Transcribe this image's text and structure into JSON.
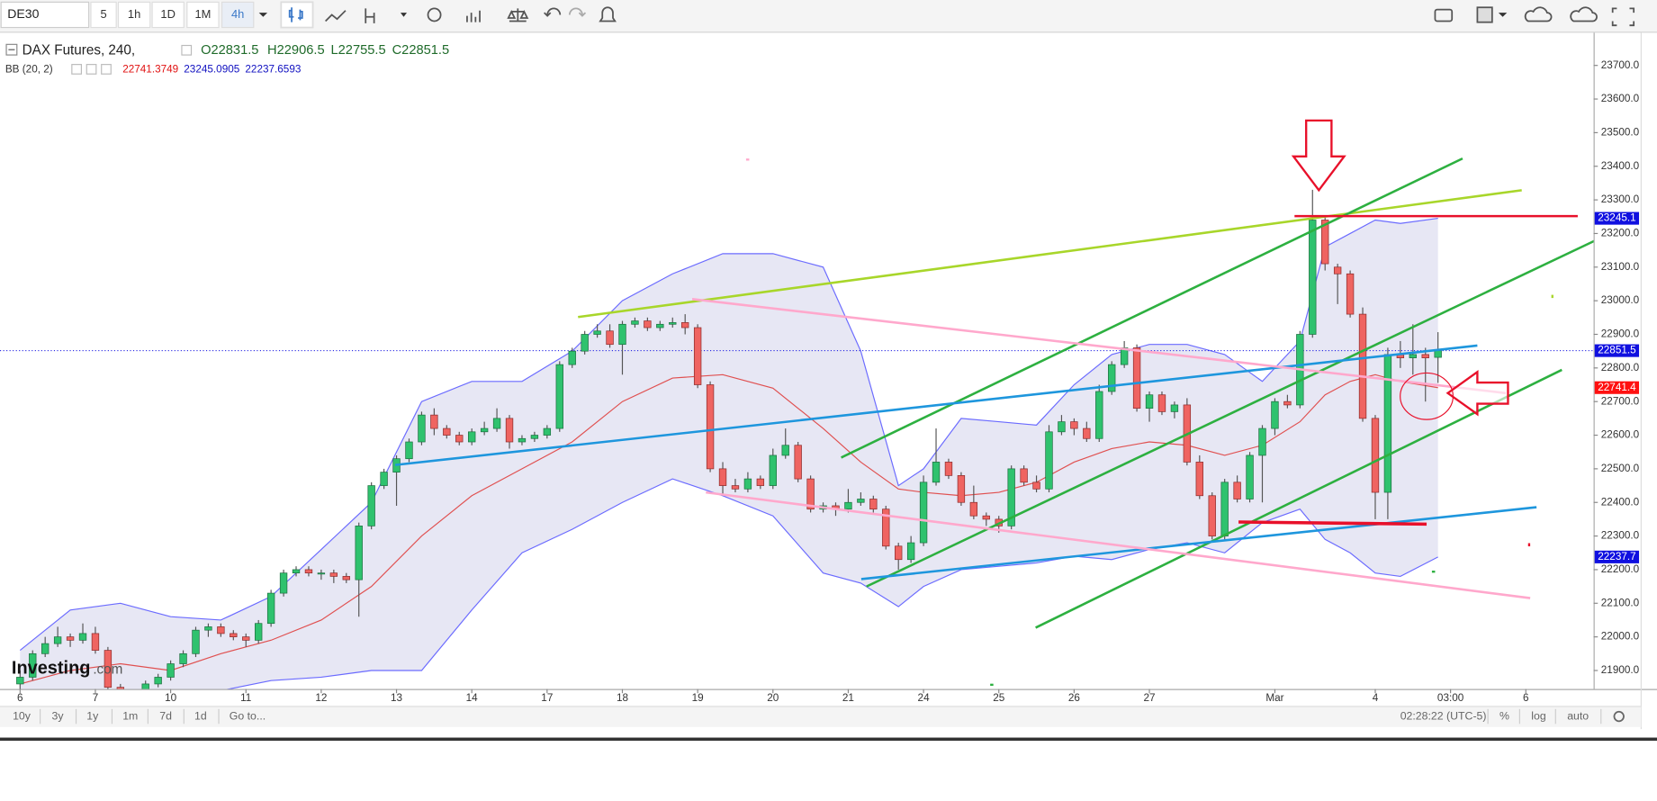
{
  "toolbar": {
    "symbol": "DE30",
    "intervals": [
      "5",
      "1h",
      "1D",
      "1M",
      "4h"
    ]
  },
  "legend": {
    "name": "DAX Futures, 240,",
    "ohlc": [
      "O22831.5",
      "H22906.5",
      "L22755.5",
      "C22851.5"
    ],
    "bb_name": "BB (20, 2)",
    "bb": [
      "22741.3749",
      "23245.0905",
      "22237.6593"
    ]
  },
  "watermark": [
    "Investing",
    ".com"
  ],
  "range_bar": {
    "ranges": [
      "10y",
      "3y",
      "1y",
      "1m",
      "7d",
      "1d"
    ],
    "goto": "Go to...",
    "clock": "02:28:22 (UTC-5)",
    "options": [
      "%",
      "log",
      "auto"
    ]
  },
  "chart_data": {
    "type": "candlestick",
    "up_color": "#2fc26e",
    "down_color": "#ef6461",
    "ohlc": [
      [
        21860,
        21900,
        21840,
        21880
      ],
      [
        21880,
        21960,
        21870,
        21950
      ],
      [
        21950,
        22000,
        21940,
        21980
      ],
      [
        21980,
        22030,
        21970,
        22000
      ],
      [
        22000,
        22010,
        21970,
        21990
      ],
      [
        21990,
        22040,
        21980,
        22010
      ],
      [
        22010,
        22030,
        21950,
        21960
      ],
      [
        21960,
        21970,
        21840,
        21850
      ],
      [
        21850,
        21860,
        21800,
        21820
      ],
      [
        21820,
        21830,
        21780,
        21800
      ],
      [
        21800,
        21870,
        21790,
        21860
      ],
      [
        21860,
        21890,
        21850,
        21880
      ],
      [
        21880,
        21930,
        21870,
        21920
      ],
      [
        21920,
        21960,
        21910,
        21950
      ],
      [
        21950,
        22030,
        21940,
        22020
      ],
      [
        22020,
        22040,
        22000,
        22030
      ],
      [
        22030,
        22040,
        22000,
        22010
      ],
      [
        22010,
        22020,
        21990,
        22000
      ],
      [
        22000,
        22010,
        21970,
        21990
      ],
      [
        21990,
        22050,
        21980,
        22040
      ],
      [
        22040,
        22140,
        22030,
        22130
      ],
      [
        22130,
        22200,
        22120,
        22190
      ],
      [
        22190,
        22210,
        22180,
        22200
      ],
      [
        22200,
        22210,
        22180,
        22190
      ],
      [
        22190,
        22200,
        22170,
        22190
      ],
      [
        22190,
        22200,
        22160,
        22180
      ],
      [
        22180,
        22190,
        22160,
        22170
      ],
      [
        22170,
        22340,
        22060,
        22330
      ],
      [
        22330,
        22460,
        22320,
        22450
      ],
      [
        22450,
        22500,
        22440,
        22490
      ],
      [
        22490,
        22540,
        22390,
        22530
      ],
      [
        22530,
        22590,
        22520,
        22580
      ],
      [
        22580,
        22670,
        22570,
        22660
      ],
      [
        22660,
        22680,
        22600,
        22620
      ],
      [
        22620,
        22630,
        22590,
        22600
      ],
      [
        22600,
        22610,
        22570,
        22580
      ],
      [
        22580,
        22620,
        22570,
        22610
      ],
      [
        22610,
        22640,
        22600,
        22620
      ],
      [
        22620,
        22680,
        22610,
        22650
      ],
      [
        22650,
        22660,
        22560,
        22580
      ],
      [
        22580,
        22600,
        22570,
        22590
      ],
      [
        22590,
        22610,
        22580,
        22600
      ],
      [
        22600,
        22630,
        22590,
        22620
      ],
      [
        22620,
        22820,
        22610,
        22810
      ],
      [
        22810,
        22860,
        22800,
        22850
      ],
      [
        22850,
        22910,
        22840,
        22900
      ],
      [
        22900,
        22930,
        22890,
        22910
      ],
      [
        22910,
        22930,
        22860,
        22870
      ],
      [
        22870,
        22940,
        22780,
        22930
      ],
      [
        22930,
        22950,
        22920,
        22940
      ],
      [
        22940,
        22950,
        22910,
        22920
      ],
      [
        22920,
        22940,
        22910,
        22930
      ],
      [
        22930,
        22950,
        22920,
        22935
      ],
      [
        22935,
        22960,
        22900,
        22920
      ],
      [
        22920,
        22930,
        22740,
        22750
      ],
      [
        22750,
        22760,
        22490,
        22500
      ],
      [
        22500,
        22520,
        22420,
        22450
      ],
      [
        22450,
        22470,
        22430,
        22440
      ],
      [
        22440,
        22490,
        22430,
        22470
      ],
      [
        22470,
        22480,
        22440,
        22450
      ],
      [
        22450,
        22560,
        22440,
        22540
      ],
      [
        22540,
        22620,
        22530,
        22570
      ],
      [
        22570,
        22580,
        22460,
        22470
      ],
      [
        22470,
        22480,
        22370,
        22380
      ],
      [
        22380,
        22400,
        22370,
        22390
      ],
      [
        22390,
        22400,
        22360,
        22380
      ],
      [
        22380,
        22440,
        22370,
        22400
      ],
      [
        22400,
        22430,
        22390,
        22410
      ],
      [
        22410,
        22420,
        22370,
        22380
      ],
      [
        22380,
        22390,
        22260,
        22270
      ],
      [
        22270,
        22280,
        22200,
        22230
      ],
      [
        22230,
        22300,
        22220,
        22280
      ],
      [
        22280,
        22480,
        22270,
        22460
      ],
      [
        22460,
        22620,
        22450,
        22520
      ],
      [
        22520,
        22530,
        22470,
        22480
      ],
      [
        22480,
        22490,
        22390,
        22400
      ],
      [
        22400,
        22450,
        22350,
        22360
      ],
      [
        22360,
        22370,
        22330,
        22350
      ],
      [
        22350,
        22360,
        22310,
        22330
      ],
      [
        22330,
        22510,
        22320,
        22500
      ],
      [
        22500,
        22510,
        22450,
        22460
      ],
      [
        22460,
        22480,
        22430,
        22440
      ],
      [
        22440,
        22630,
        22430,
        22610
      ],
      [
        22610,
        22660,
        22600,
        22640
      ],
      [
        22640,
        22650,
        22600,
        22620
      ],
      [
        22620,
        22640,
        22580,
        22590
      ],
      [
        22590,
        22750,
        22580,
        22730
      ],
      [
        22730,
        22820,
        22720,
        22810
      ],
      [
        22810,
        22880,
        22800,
        22860
      ],
      [
        22860,
        22870,
        22670,
        22680
      ],
      [
        22680,
        22730,
        22640,
        22720
      ],
      [
        22720,
        22730,
        22660,
        22670
      ],
      [
        22670,
        22700,
        22650,
        22690
      ],
      [
        22690,
        22710,
        22510,
        22520
      ],
      [
        22520,
        22540,
        22410,
        22420
      ],
      [
        22420,
        22430,
        22290,
        22300
      ],
      [
        22300,
        22470,
        22290,
        22460
      ],
      [
        22460,
        22480,
        22400,
        22410
      ],
      [
        22410,
        22550,
        22400,
        22540
      ],
      [
        22540,
        22630,
        22400,
        22620
      ],
      [
        22620,
        22710,
        22600,
        22700
      ],
      [
        22700,
        22720,
        22680,
        22690
      ],
      [
        22690,
        22910,
        22680,
        22900
      ],
      [
        22900,
        23330,
        22890,
        23240
      ],
      [
        23240,
        23250,
        23090,
        23110
      ],
      [
        23100,
        23110,
        22990,
        23080
      ],
      [
        23080,
        23090,
        22950,
        22960
      ],
      [
        22960,
        22980,
        22640,
        22650
      ],
      [
        22650,
        22660,
        22350,
        22430
      ],
      [
        22430,
        22860,
        22350,
        22840
      ],
      [
        22840,
        22880,
        22800,
        22830
      ],
      [
        22830,
        22930,
        22780,
        22840
      ],
      [
        22840,
        22860,
        22700,
        22830
      ],
      [
        22831.5,
        22906.5,
        22755.5,
        22851.5
      ]
    ],
    "xlim": [
      -1.6,
      125.4
    ],
    "xticks": [
      {
        "value": 0,
        "label": "6"
      },
      {
        "value": 6,
        "label": "7"
      },
      {
        "value": 12,
        "label": "10"
      },
      {
        "value": 18,
        "label": "11"
      },
      {
        "value": 24,
        "label": "12"
      },
      {
        "value": 30,
        "label": "13"
      },
      {
        "value": 36,
        "label": "14"
      },
      {
        "value": 42,
        "label": "17"
      },
      {
        "value": 48,
        "label": "18"
      },
      {
        "value": 54,
        "label": "19"
      },
      {
        "value": 60,
        "label": "20"
      },
      {
        "value": 66,
        "label": "21"
      },
      {
        "value": 72,
        "label": "24"
      },
      {
        "value": 78,
        "label": "25"
      },
      {
        "value": 84,
        "label": "26"
      },
      {
        "value": 90,
        "label": "27"
      },
      {
        "value": 100,
        "label": "Mar"
      },
      {
        "value": 108,
        "label": "4"
      },
      {
        "value": 114,
        "label": "03:00"
      },
      {
        "value": 120,
        "label": "6"
      }
    ],
    "ylim": [
      21845,
      23794
    ],
    "yticks": [
      {
        "value": 21900,
        "label": "21900.0"
      },
      {
        "value": 22000,
        "label": "22000.0"
      },
      {
        "value": 22100,
        "label": "22100.0"
      },
      {
        "value": 22200,
        "label": "22200.0"
      },
      {
        "value": 22300,
        "label": "22300.0"
      },
      {
        "value": 22400,
        "label": "22400.0"
      },
      {
        "value": 22500,
        "label": "22500.0"
      },
      {
        "value": 22600,
        "label": "22600.0"
      },
      {
        "value": 22700,
        "label": "22700.0"
      },
      {
        "value": 22800,
        "label": "22800.0"
      },
      {
        "value": 22900,
        "label": "22900.0"
      },
      {
        "value": 23000,
        "label": "23000.0"
      },
      {
        "value": 23100,
        "label": "23100.0"
      },
      {
        "value": 23200,
        "label": "23200.0"
      },
      {
        "value": 23300,
        "label": "23300.0"
      },
      {
        "value": 23400,
        "label": "23400.0"
      },
      {
        "value": 23500,
        "label": "23500.0"
      },
      {
        "value": 23600,
        "label": "23600.0"
      },
      {
        "value": 23700,
        "label": "23700.0"
      }
    ],
    "grid": false,
    "bands": {
      "x": [
        0,
        4,
        8,
        12,
        16,
        20,
        24,
        28,
        32,
        36,
        40,
        44,
        48,
        52,
        56,
        60,
        64,
        67,
        70,
        72,
        75,
        78,
        81,
        84,
        87,
        90,
        93,
        96,
        99,
        102,
        104,
        106,
        108,
        110,
        113
      ],
      "upper": [
        21960,
        22080,
        22100,
        22060,
        22050,
        22120,
        22260,
        22400,
        22700,
        22760,
        22760,
        22850,
        23000,
        23080,
        23140,
        23140,
        23100,
        22850,
        22450,
        22500,
        22650,
        22640,
        22630,
        22750,
        22840,
        22870,
        22870,
        22840,
        22760,
        22880,
        23160,
        23200,
        23240,
        23230,
        23245.0905
      ],
      "middle": [
        21860,
        21900,
        21920,
        21900,
        21950,
        21990,
        22050,
        22150,
        22300,
        22420,
        22500,
        22580,
        22700,
        22770,
        22780,
        22740,
        22620,
        22520,
        22440,
        22430,
        22420,
        22430,
        22460,
        22520,
        22560,
        22580,
        22570,
        22540,
        22570,
        22640,
        22720,
        22760,
        22780,
        22760,
        22741.3749
      ],
      "lower": [
        21800,
        21780,
        21760,
        21760,
        21840,
        21870,
        21880,
        21900,
        21900,
        22080,
        22250,
        22320,
        22400,
        22470,
        22420,
        22360,
        22190,
        22160,
        22090,
        22150,
        22200,
        22210,
        22220,
        22240,
        22230,
        22260,
        22280,
        22250,
        22340,
        22380,
        22290,
        22250,
        22190,
        22180,
        22237.6593
      ],
      "band_color": "#6b6bff",
      "middle_color": "#e05050",
      "fill": "#e3e3f2"
    },
    "price_tags": [
      {
        "value": 23245.1,
        "color": "#1010e0"
      },
      {
        "value": 22851.5,
        "color": "#1010e0",
        "line": true
      },
      {
        "value": 22741.4,
        "color": "#ff1010"
      },
      {
        "value": 22237.7,
        "color": "#1010e0"
      }
    ]
  }
}
